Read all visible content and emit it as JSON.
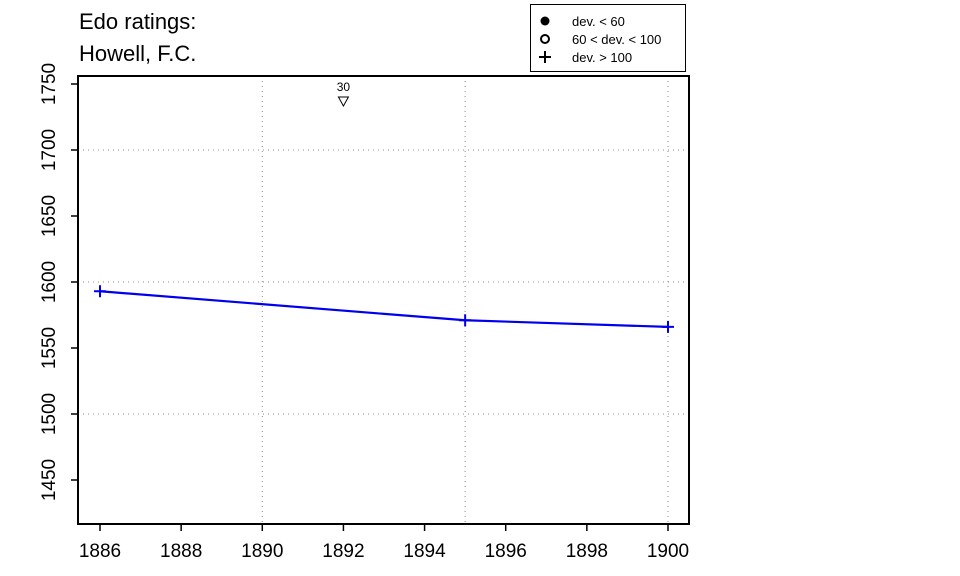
{
  "title": {
    "line1": "Edo ratings:",
    "line2": "Howell, F.C."
  },
  "legend": {
    "items": [
      {
        "symbol": "filled-circle",
        "label": "dev. < 60"
      },
      {
        "symbol": "open-circle",
        "label": "60 < dev. < 100"
      },
      {
        "symbol": "plus",
        "label": "dev. > 100"
      }
    ]
  },
  "colors": {
    "series": "#0000ee",
    "grid": "#888888",
    "axis": "#000000"
  },
  "chart_data": {
    "type": "line",
    "title": "Edo ratings: Howell, F.C.",
    "xlabel": "",
    "ylabel": "",
    "xlim": [
      1885.5,
      1900.6
    ],
    "ylim": [
      1418,
      1757
    ],
    "x_ticks": [
      1886,
      1888,
      1890,
      1892,
      1894,
      1896,
      1898,
      1900
    ],
    "y_ticks": [
      1450,
      1500,
      1550,
      1600,
      1650,
      1700,
      1750
    ],
    "x_grid": [
      1890,
      1895,
      1900
    ],
    "y_grid": [
      1500,
      1600,
      1700
    ],
    "grid": "dotted",
    "legend_position": "top-right",
    "series": [
      {
        "marker": "plus",
        "x": [
          1886,
          1895,
          1900
        ],
        "y": [
          1593,
          1571,
          1566
        ]
      }
    ],
    "annotations": [
      {
        "x": 1892,
        "y": 1743,
        "marker": "down-triangle",
        "label": "30"
      }
    ]
  }
}
